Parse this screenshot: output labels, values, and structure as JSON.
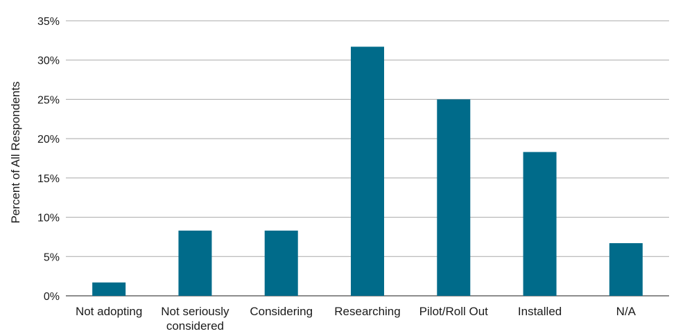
{
  "chart_data": {
    "type": "bar",
    "categories": [
      "Not adopting",
      "Not seriously considered",
      "Considering",
      "Researching",
      "Pilot/Roll Out",
      "Installed",
      "N/A"
    ],
    "category_lines": [
      [
        "Not adopting"
      ],
      [
        "Not seriously",
        "considered"
      ],
      [
        "Considering"
      ],
      [
        "Researching"
      ],
      [
        "Pilot/Roll Out"
      ],
      [
        "Installed"
      ],
      [
        "N/A"
      ]
    ],
    "values": [
      1.7,
      8.3,
      8.3,
      31.7,
      25.0,
      18.3,
      6.7
    ],
    "unit": "%",
    "ylabel": "Percent of All Respondents",
    "xlabel": "",
    "title": "",
    "ylim": [
      0,
      35
    ],
    "yticks": [
      0,
      5,
      10,
      15,
      20,
      25,
      30,
      35
    ],
    "ytick_labels": [
      "0%",
      "5%",
      "10%",
      "15%",
      "20%",
      "25%",
      "30%",
      "35%"
    ],
    "grid": true,
    "legend": "none",
    "bar_color": "#006b8a"
  }
}
